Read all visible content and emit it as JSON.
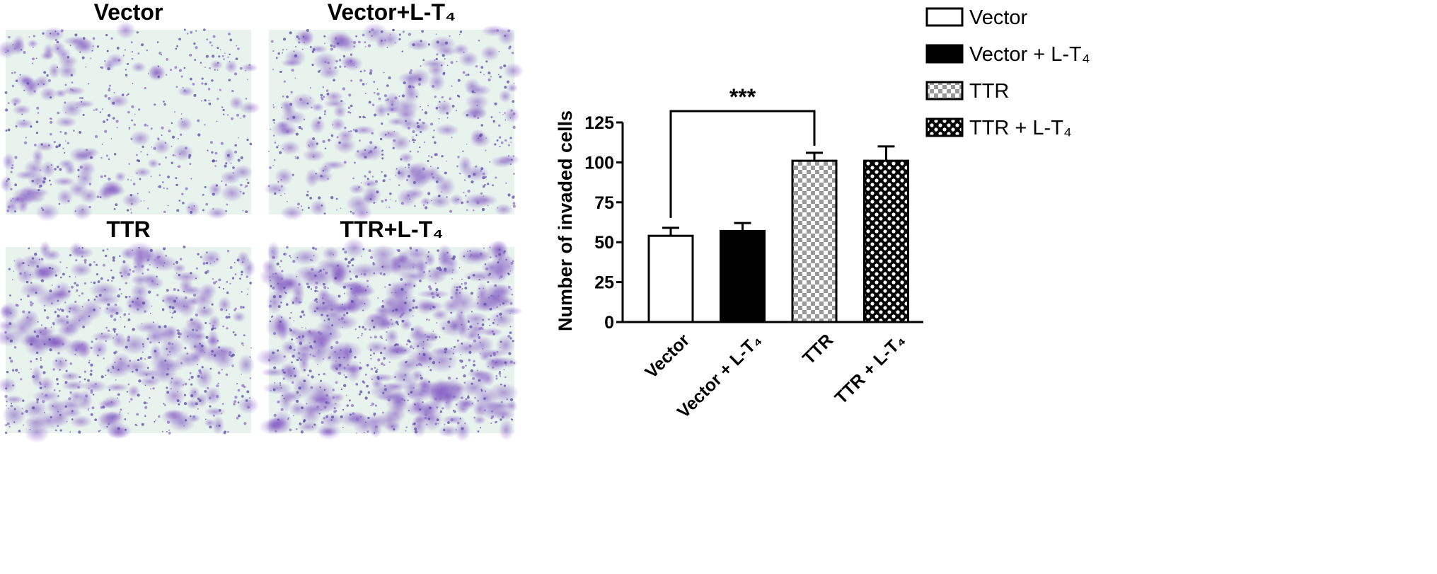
{
  "panels": [
    {
      "title": "Vector"
    },
    {
      "title": "Vector+L-T₄"
    },
    {
      "title": "TTR"
    },
    {
      "title": "TTR+L-T₄"
    }
  ],
  "chart_data": {
    "type": "bar",
    "y_label": "Number of invaded cells",
    "categories": [
      "Vector",
      "Vector + L-T₄",
      "TTR",
      "TTR + L-T₄"
    ],
    "values": [
      54,
      57,
      101,
      101
    ],
    "errors": [
      5,
      5,
      5,
      9
    ],
    "fills": [
      "white",
      "black",
      "checker",
      "polka"
    ],
    "ylim": [
      0,
      125
    ],
    "yticks": [
      0,
      25,
      50,
      75,
      100,
      125
    ],
    "significance": {
      "label": "***",
      "between": [
        0,
        2
      ]
    },
    "legend": "top-right"
  }
}
